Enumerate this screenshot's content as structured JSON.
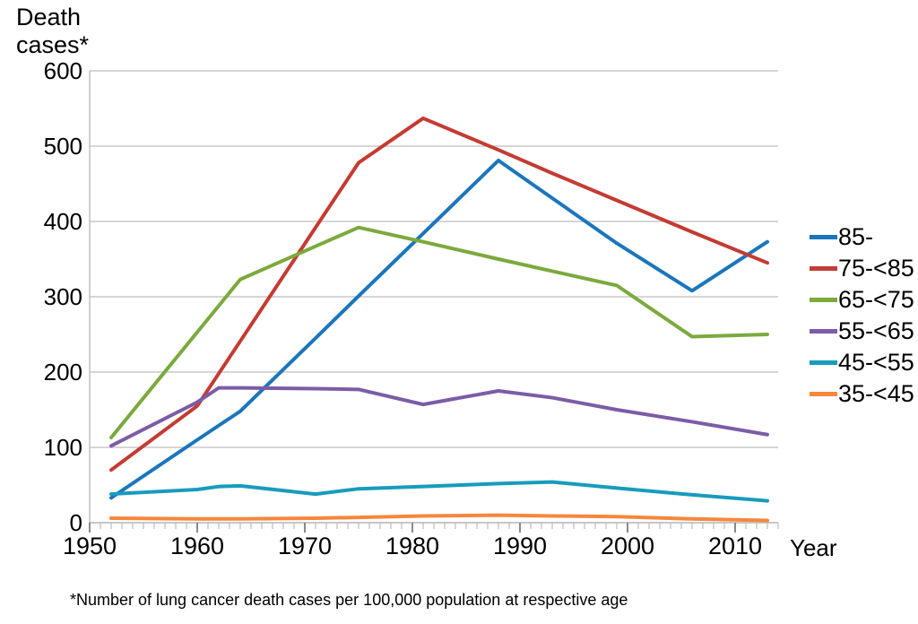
{
  "chart_data": {
    "type": "line",
    "title": "Death cases*",
    "xlabel": "Year",
    "footnote": "*Number of lung cancer death cases per 100,000 population at respective age",
    "grid": "horizontal",
    "legend_position": "right",
    "x_axis": {
      "min": 1950,
      "max": 2014,
      "major_ticks": [
        1950,
        1960,
        1970,
        1980,
        1990,
        2000,
        2010
      ],
      "minor_tick_every_years": 1
    },
    "y_axis": {
      "min": 0,
      "max": 600,
      "ticks": [
        0,
        100,
        200,
        300,
        400,
        500,
        600
      ]
    },
    "x": [
      1952,
      1960,
      1962,
      1964,
      1971,
      1975,
      1981,
      1988,
      1993,
      1999,
      2006,
      2013
    ],
    "series": [
      {
        "name": "85-",
        "color": "#1B76BC",
        "values": [
          33,
          110,
          129,
          148,
          245,
          301,
          384,
          481,
          431,
          371,
          308,
          373
        ]
      },
      {
        "name": "75-<85",
        "color": "#C43B32",
        "values": [
          70,
          155,
          198,
          241,
          392,
          478,
          537,
          495,
          464,
          428,
          386,
          345
        ]
      },
      {
        "name": "65-<75",
        "color": "#7BAA3D",
        "values": [
          113,
          253,
          288,
          323,
          367,
          392,
          373,
          350,
          334,
          315,
          247,
          250
        ]
      },
      {
        "name": "55-<65",
        "color": "#7C5CA6",
        "values": [
          102,
          160,
          179,
          179,
          178,
          177,
          157,
          175,
          166,
          150,
          134,
          117
        ]
      },
      {
        "name": "45-<55",
        "color": "#189BBD",
        "values": [
          38,
          44,
          48,
          49,
          38,
          45,
          48,
          52,
          54,
          46,
          37,
          29
        ]
      },
      {
        "name": "35-<45",
        "color": "#F6873B",
        "values": [
          6,
          5,
          5,
          5,
          6,
          7,
          9,
          10,
          9,
          8,
          5,
          3
        ]
      }
    ],
    "colors": {
      "gridline": "#C9C9C9",
      "axis_line": "#BFBFBF",
      "major_tick": "#898989",
      "text": "#000000"
    }
  }
}
